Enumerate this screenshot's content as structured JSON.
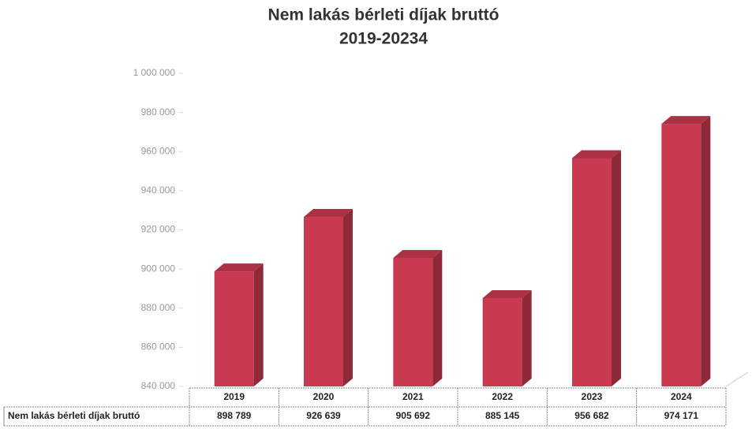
{
  "chart_data": {
    "type": "bar3d",
    "title": "Nem lakás bérleti díjak bruttó",
    "subtitle": "2019-20234",
    "categories": [
      "2019",
      "2020",
      "2021",
      "2022",
      "2023",
      "2024"
    ],
    "series": [
      {
        "name": "Nem lakás bérleti díjak bruttó",
        "color": "#c93a50",
        "values": [
          898789,
          926639,
          905692,
          885145,
          956682,
          974171
        ],
        "value_labels": [
          "898 789",
          "926 639",
          "905 692",
          "885 145",
          "956 682",
          "974 171"
        ]
      }
    ],
    "ylim": [
      840000,
      1000000
    ],
    "yticks": [
      {
        "value": 840000,
        "label": "840 000"
      },
      {
        "value": 860000,
        "label": "860 000"
      },
      {
        "value": 880000,
        "label": "880 000"
      },
      {
        "value": 900000,
        "label": "900 000"
      },
      {
        "value": 920000,
        "label": "920 000"
      },
      {
        "value": 940000,
        "label": "940 000"
      },
      {
        "value": 960000,
        "label": "960 000"
      },
      {
        "value": 980000,
        "label": "980 000"
      },
      {
        "value": 1000000,
        "label": "1 000 000"
      }
    ],
    "grid": false,
    "data_table": true
  }
}
